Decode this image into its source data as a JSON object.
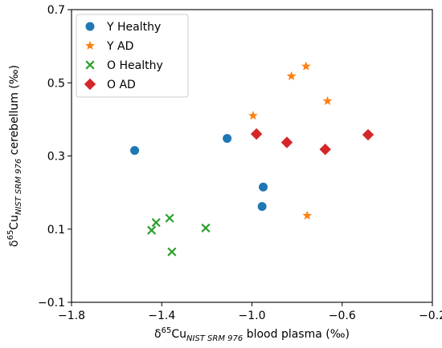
{
  "chart_data": {
    "type": "scatter",
    "xlim": [
      -1.8,
      -0.2
    ],
    "ylim": [
      -0.1,
      0.7
    ],
    "x_ticks": [
      -1.8,
      -1.4,
      -1.0,
      -0.6,
      -0.2
    ],
    "x_tick_labels": [
      "−1.8",
      "−1.4",
      "−1.0",
      "−0.6",
      "−0.2"
    ],
    "y_ticks": [
      -0.1,
      0.1,
      0.3,
      0.5,
      0.7
    ],
    "y_tick_labels": [
      "−0.1",
      "0.1",
      "0.3",
      "0.5",
      "0.7"
    ],
    "xlabel": {
      "prefix": "δ",
      "sup": "65",
      "main": "Cu",
      "sub": "NIST SRM 976",
      "suffix": " blood plasma (‰)"
    },
    "ylabel": {
      "prefix": "δ",
      "sup": "65",
      "main": "Cu",
      "sub": "NIST SRM 976",
      "suffix": " cerebellum (‰)"
    },
    "grid": false,
    "legend_position": "top-left",
    "series": [
      {
        "name": "Y Healthy",
        "marker": "circle",
        "color": "#1f77b4",
        "points": [
          [
            -1.52,
            0.315
          ],
          [
            -1.11,
            0.348
          ],
          [
            -0.95,
            0.215
          ],
          [
            -0.955,
            0.162
          ]
        ]
      },
      {
        "name": "Y AD",
        "marker": "star",
        "color": "#ff7f0e",
        "points": [
          [
            -0.995,
            0.41
          ],
          [
            -0.825,
            0.518
          ],
          [
            -0.76,
            0.545
          ],
          [
            -0.665,
            0.45
          ],
          [
            -0.755,
            0.137
          ]
        ]
      },
      {
        "name": "O Healthy",
        "marker": "x",
        "color": "#2ca02c",
        "points": [
          [
            -1.445,
            0.097
          ],
          [
            -1.425,
            0.118
          ],
          [
            -1.365,
            0.13
          ],
          [
            -1.205,
            0.103
          ],
          [
            -1.355,
            0.038
          ]
        ]
      },
      {
        "name": "O AD",
        "marker": "diamond",
        "color": "#d62728",
        "points": [
          [
            -0.98,
            0.36
          ],
          [
            -0.845,
            0.337
          ],
          [
            -0.675,
            0.318
          ],
          [
            -0.485,
            0.358
          ]
        ]
      }
    ]
  }
}
